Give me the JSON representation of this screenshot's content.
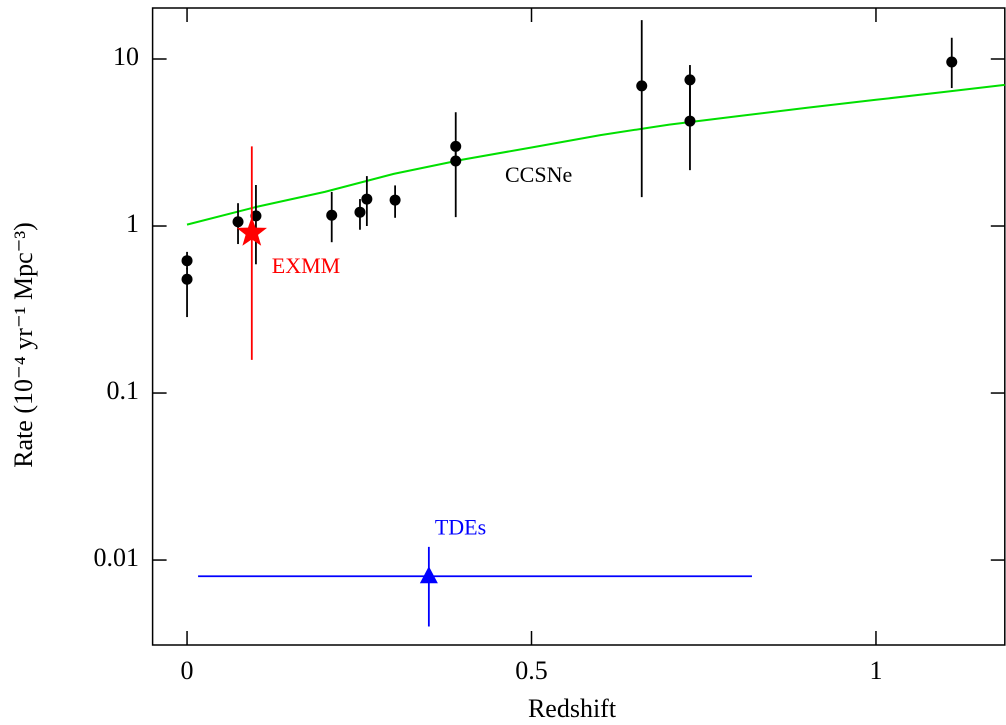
{
  "chart_data": {
    "type": "scatter",
    "x_label": "Redshift",
    "y_label": "Rate (10⁻⁴ yr⁻¹ Mpc⁻³)",
    "yscale": "log",
    "xlim": [
      -0.05,
      1.187
    ],
    "ylim": [
      0.0031,
      20.2
    ],
    "xticks": [
      0,
      0.5,
      1
    ],
    "yticks": [
      0.01,
      0.1,
      1,
      10
    ],
    "grid": false,
    "series": [
      {
        "name": "CCSNe",
        "color": "#00e000",
        "kind": "line",
        "x": [
          0,
          0.1,
          0.2,
          0.3,
          0.4,
          0.5,
          0.6,
          0.7,
          0.8,
          0.9,
          1.0,
          1.1,
          1.187
        ],
        "values": [
          1.02,
          1.3,
          1.6,
          2.05,
          2.5,
          2.95,
          3.5,
          4.05,
          4.55,
          5.1,
          5.7,
          6.35,
          7.0
        ]
      },
      {
        "color": "#000000",
        "kind": "errorbar",
        "marker": "circle",
        "x": [
          0,
          0,
          0.074,
          0.1,
          0.21,
          0.251,
          0.261,
          0.302,
          0.39,
          0.39,
          0.66,
          0.73,
          0.73,
          1.11
        ],
        "values": [
          0.62,
          0.48,
          1.06,
          1.15,
          1.16,
          1.21,
          1.45,
          1.43,
          3.0,
          2.45,
          6.9,
          7.5,
          4.25,
          9.6
        ],
        "y_low": [
          0.55,
          0.285,
          0.78,
          0.59,
          0.8,
          0.95,
          1.0,
          1.12,
          2.45,
          1.13,
          1.49,
          4.25,
          2.16,
          6.7
        ],
        "y_high": [
          0.7,
          0.56,
          1.37,
          1.76,
          1.6,
          1.45,
          1.99,
          1.75,
          4.8,
          3.0,
          17.1,
          9.2,
          7.5,
          13.4
        ]
      },
      {
        "name": "EXMM",
        "color": "#ff0000",
        "kind": "errorbar",
        "marker": "star",
        "x": [
          0.094
        ],
        "values": [
          0.91
        ],
        "y_low": [
          0.158
        ],
        "y_high": [
          3.0
        ]
      },
      {
        "name": "TDEs",
        "color": "#0000ff",
        "kind": "errorbar",
        "marker": "triangle",
        "x": [
          0.351
        ],
        "values": [
          0.008
        ],
        "y_low": [
          0.004
        ],
        "y_high": [
          0.012
        ],
        "x_low": [
          0.016
        ],
        "x_high": [
          0.82
        ]
      }
    ]
  }
}
